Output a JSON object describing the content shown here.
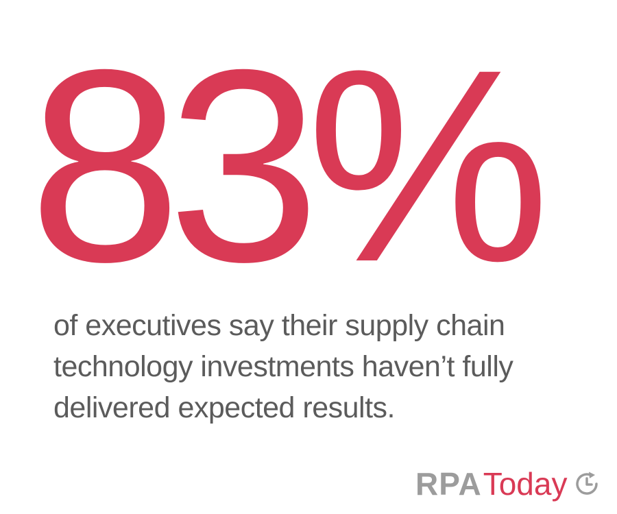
{
  "headline": {
    "stat": "83%"
  },
  "caption": {
    "line1": "of executives say their supply chain",
    "line2": "technology investments haven’t fully",
    "line3": "delivered expected results."
  },
  "logo": {
    "brand_bold": "RPA",
    "brand_light": "Today",
    "icon": "clock-refresh-icon"
  },
  "colors": {
    "accent": "#d93a55",
    "body_text": "#5b5b5b",
    "logo_gray": "#9c9c9c",
    "background": "#ffffff"
  }
}
